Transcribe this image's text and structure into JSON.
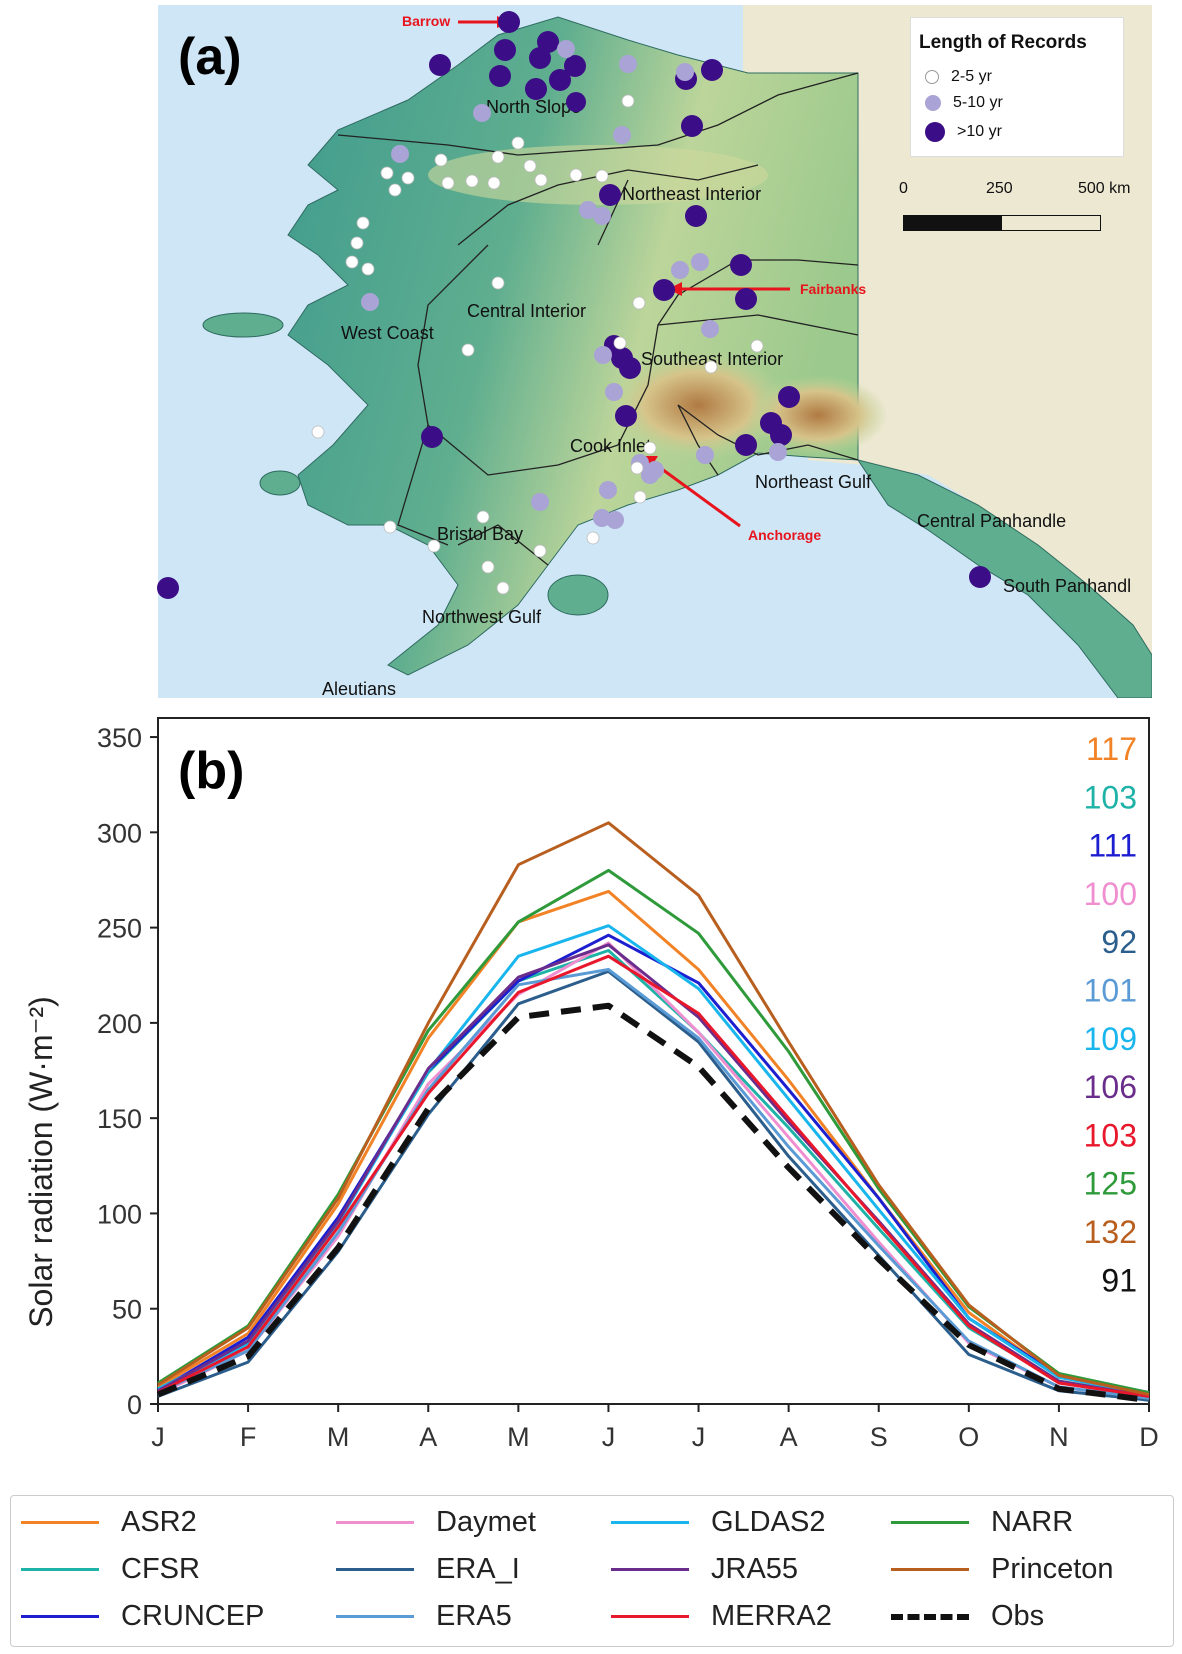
{
  "panel_a": {
    "letter": "(a)",
    "legend": {
      "title": "Length of Records",
      "items": [
        {
          "label": "2-5 yr",
          "color": "#ffffff"
        },
        {
          "label": "5-10 yr",
          "color": "#a9a3d6"
        },
        {
          "label": ">10 yr",
          "color": "#3b0d86"
        }
      ]
    },
    "scalebar": {
      "ticks": [
        "0",
        "250",
        "500 km"
      ]
    },
    "regions": [
      "North Slope",
      "Northeast Interior",
      "Central Interior",
      "West Coast",
      "Southeast Interior",
      "Cook Inlet",
      "Northeast Gulf",
      "Bristol Bay",
      "Central Panhandle",
      "South Panhandl",
      "Northwest Gulf",
      "Aleutians"
    ],
    "cities": [
      "Barrow",
      "Fairbanks",
      "Anchorage"
    ],
    "colors": {
      "ocean": "#cfe6f6",
      "land_low": "#3f9b8e",
      "land_mid": "#bcd59a",
      "land_high": "#b07a43",
      "canada": "#ede8d2",
      "city_arrow": "#e8141d"
    }
  },
  "panel_b": {
    "letter": "(b)",
    "chart_data": {
      "type": "line",
      "x": [
        "J",
        "F",
        "M",
        "A",
        "M",
        "J",
        "J",
        "A",
        "S",
        "O",
        "N",
        "D"
      ],
      "ylabel": "Solar  radiation (W·m⁻²)",
      "ylim": [
        0,
        360
      ],
      "yticks": [
        0,
        50,
        100,
        150,
        200,
        250,
        300,
        350
      ],
      "grid": false,
      "legend_position": "bottom",
      "series": [
        {
          "name": "ASR2",
          "color": "#f28226",
          "annotation": "117",
          "values": [
            9,
            37,
            105,
            192,
            253,
            269,
            228,
            170,
            108,
            48,
            14,
            5
          ]
        },
        {
          "name": "CFSR",
          "color": "#1fb3a8",
          "annotation": "103",
          "values": [
            8,
            32,
            97,
            174,
            222,
            238,
            195,
            145,
            92,
            40,
            12,
            4
          ]
        },
        {
          "name": "CRUNCEP",
          "color": "#1c1ed0",
          "annotation": "111",
          "values": [
            7,
            35,
            98,
            175,
            222,
            246,
            221,
            165,
            108,
            45,
            15,
            6
          ]
        },
        {
          "name": "Daymet",
          "color": "#f08fd0",
          "annotation": "100",
          "values": [
            5,
            28,
            88,
            168,
            215,
            242,
            195,
            140,
            85,
            32,
            9,
            3
          ]
        },
        {
          "name": "ERA_I",
          "color": "#2b5e8c",
          "annotation": "92",
          "values": [
            4,
            22,
            80,
            152,
            210,
            227,
            190,
            130,
            78,
            26,
            7,
            2
          ]
        },
        {
          "name": "ERA5",
          "color": "#5b9bd5",
          "annotation": "101",
          "values": [
            6,
            28,
            90,
            165,
            220,
            228,
            192,
            135,
            83,
            33,
            9,
            3
          ]
        },
        {
          "name": "GLDAS2",
          "color": "#19b6ee",
          "annotation": "109",
          "values": [
            8,
            31,
            95,
            175,
            235,
            251,
            218,
            160,
            102,
            45,
            14,
            5
          ]
        },
        {
          "name": "JRA55",
          "color": "#6a2d8c",
          "annotation": "106",
          "values": [
            7,
            33,
            96,
            176,
            224,
            241,
            203,
            148,
            96,
            42,
            12,
            4
          ]
        },
        {
          "name": "MERRA2",
          "color": "#e8172b",
          "annotation": "103",
          "values": [
            6,
            30,
            93,
            163,
            216,
            235,
            205,
            150,
            95,
            41,
            11,
            4
          ]
        },
        {
          "name": "NARR",
          "color": "#2e9a3a",
          "annotation": "125",
          "values": [
            11,
            41,
            110,
            196,
            253,
            280,
            247,
            185,
            113,
            51,
            16,
            6
          ]
        },
        {
          "name": "Princeton",
          "color": "#b85e1e",
          "annotation": "132",
          "values": [
            10,
            40,
            108,
            200,
            283,
            305,
            267,
            190,
            115,
            52,
            15,
            5
          ]
        },
        {
          "name": "Obs",
          "color": "#111111",
          "dashed": true,
          "annotation": "91",
          "values": [
            5,
            25,
            82,
            155,
            203,
            209,
            177,
            124,
            76,
            31,
            8,
            2
          ]
        }
      ]
    }
  }
}
